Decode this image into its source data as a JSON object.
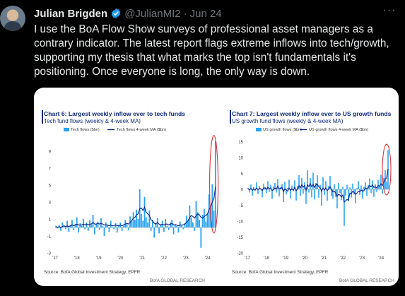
{
  "tweet": {
    "author_name": "Julian Brigden",
    "handle": "@JulianMI2",
    "separator": "·",
    "date": "Jun 24",
    "text": "I use the BoA Flow Show surveys of professional asset managers as a contrary indicator. The latest report flags extreme inflows into tech/growth, supporting my thesis that what marks the top isn't fundamentals it's positioning. Once everyone is long, the only way is down."
  },
  "colors": {
    "weekly": "#29a3f0",
    "ma": "#0c1e8a",
    "highlight": "#e0303a",
    "verified": "#1d9bf0"
  },
  "chart_data": [
    {
      "type": "bar",
      "title": "Chart 6: Largest weekly inflow ever to tech funds",
      "subtitle": "Tech fund flows (weekly & 4-week MA)",
      "series": [
        {
          "name": "Tech flows ($bn)",
          "style": "bar",
          "values": [
            0.2,
            -0.1,
            0.3,
            -0.4,
            0.6,
            0.1,
            -0.2,
            0.8,
            -0.5,
            0.3,
            0.9,
            -0.3,
            0.4,
            1.2,
            -0.6,
            0.5,
            0.2,
            1.0,
            -0.2,
            0.6,
            -0.4,
            0.9,
            0.3,
            1.5,
            -0.8,
            0.4,
            0.7,
            -0.3,
            1.1,
            0.2,
            -1.0,
            0.6,
            0.3,
            -0.5,
            0.8,
            0.1,
            -0.2,
            0.5,
            -0.6,
            0.3,
            0.6,
            -0.4,
            0.2,
            0.9,
            0.4,
            -0.3,
            1.3,
            0.7,
            1.8,
            0.9,
            2.1,
            1.0,
            4.5,
            1.6,
            0.8,
            3.6,
            1.2,
            0.6,
            2.0,
            -0.4,
            0.9,
            -1.2,
            0.5,
            1.1,
            -0.7,
            0.3,
            0.8,
            -0.5,
            1.0,
            0.2,
            -0.3,
            0.6,
            0.9,
            -0.8,
            0.4,
            0.2,
            -0.6,
            0.7,
            0.3,
            -0.2,
            0.5,
            1.4,
            0.8,
            2.6,
            1.2,
            0.6,
            -0.4,
            3.1,
            1.8,
            0.9,
            -2.4,
            1.5,
            2.2,
            0.7,
            1.6,
            3.9,
            2.4,
            5.1,
            2.0,
            10.2
          ]
        },
        {
          "name": "Tech flows 4-week MA ($bn)",
          "style": "line",
          "values": [
            0.1,
            0.0,
            0.1,
            0.0,
            0.1,
            0.2,
            0.1,
            0.2,
            0.1,
            0.2,
            0.3,
            0.2,
            0.3,
            0.4,
            0.3,
            0.3,
            0.3,
            0.4,
            0.3,
            0.4,
            0.3,
            0.4,
            0.4,
            0.6,
            0.4,
            0.4,
            0.5,
            0.4,
            0.5,
            0.4,
            0.3,
            0.3,
            0.3,
            0.2,
            0.3,
            0.2,
            0.2,
            0.3,
            0.2,
            0.2,
            0.3,
            0.2,
            0.3,
            0.4,
            0.5,
            0.4,
            0.6,
            0.8,
            1.1,
            1.2,
            1.5,
            1.6,
            2.2,
            2.3,
            2.0,
            2.4,
            1.8,
            1.6,
            1.4,
            0.9,
            0.8,
            0.5,
            0.4,
            0.6,
            0.4,
            0.3,
            0.4,
            0.3,
            0.4,
            0.4,
            0.3,
            0.4,
            0.5,
            0.3,
            0.3,
            0.3,
            0.2,
            0.3,
            0.3,
            0.3,
            0.4,
            0.6,
            0.8,
            1.2,
            1.4,
            1.3,
            1.1,
            1.4,
            1.6,
            1.5,
            1.2,
            1.1,
            1.3,
            1.4,
            1.6,
            2.1,
            2.4,
            3.0,
            3.4,
            4.8
          ]
        }
      ],
      "x_tick_labels": [
        "'17",
        "'18",
        "'19",
        "'20",
        "'21",
        "'22",
        "'23",
        "'24"
      ],
      "y_tick_labels": [
        "9",
        "7",
        "5",
        "3",
        "1",
        "-1",
        "-3"
      ],
      "ylim": [
        -3,
        10.5
      ],
      "source": "Source: BofA Global Investment Strategy, EPFR",
      "brand": "BofA GLOBAL RESEARCH"
    },
    {
      "type": "bar",
      "title": "Chart 7: Largest weekly inflow ever to US growth funds",
      "subtitle": "US growth fund flows (weekly & 4-week MA)",
      "series": [
        {
          "name": "US growth flows ($bn)",
          "style": "bar",
          "values": [
            0.5,
            -1.0,
            1.5,
            -2.0,
            0.8,
            -0.5,
            2.2,
            -1.5,
            1.0,
            0.3,
            -2.5,
            1.8,
            0.6,
            -1.2,
            2.6,
            -0.8,
            1.4,
            -3.0,
            0.9,
            2.0,
            -1.0,
            3.2,
            -2.2,
            0.7,
            1.6,
            -4.0,
            2.4,
            -1.6,
            0.4,
            3.0,
            -2.8,
            1.2,
            -0.6,
            2.8,
            -3.5,
            1.0,
            4.5,
            -2.0,
            3.6,
            -1.4,
            2.2,
            -4.6,
            6.0,
            -1.0,
            3.5,
            -2.5,
            5.2,
            -3.2,
            2.0,
            4.4,
            -2.6,
            1.4,
            -5.2,
            3.8,
            -1.8,
            2.6,
            -3.6,
            1.0,
            4.2,
            -2.2,
            -3.0,
            1.6,
            -2.4,
            -6.0,
            2.0,
            -1.2,
            -3.4,
            0.8,
            -11.5,
            -2.0,
            1.4,
            -3.8,
            0.6,
            -2.6,
            1.8,
            -1.6,
            -4.4,
            0.4,
            2.6,
            -1.8,
            1.2,
            -3.0,
            0.8,
            2.2,
            -2.0,
            1.4,
            3.4,
            -1.2,
            2.8,
            -2.4,
            1.6,
            -0.8,
            3.0,
            1.0,
            4.6,
            -1.4,
            3.6,
            6.0,
            2.4,
            12.4
          ]
        },
        {
          "name": "US growth flows 4-week MA ($bn)",
          "style": "line",
          "values": [
            0.2,
            -0.2,
            0.3,
            -0.3,
            0.1,
            -0.2,
            0.4,
            -0.1,
            0.3,
            0.2,
            -0.4,
            0.4,
            0.5,
            0.0,
            0.6,
            0.3,
            0.5,
            -0.4,
            -0.1,
            0.4,
            0.2,
            1.0,
            0.2,
            0.3,
            0.6,
            -0.8,
            0.1,
            -0.2,
            -0.6,
            0.4,
            -0.3,
            0.2,
            -0.3,
            0.7,
            -0.5,
            0.1,
            1.2,
            0.5,
            1.5,
            0.7,
            1.2,
            -0.3,
            1.4,
            0.9,
            1.8,
            0.8,
            1.6,
            0.6,
            1.4,
            1.6,
            0.8,
            0.5,
            -0.6,
            0.4,
            -0.2,
            0.5,
            -0.4,
            0.1,
            0.8,
            0.0,
            -0.8,
            -0.6,
            -1.2,
            -2.2,
            -1.6,
            -1.8,
            -2.4,
            -1.8,
            -4.0,
            -3.6,
            -3.2,
            -3.4,
            -1.2,
            -1.4,
            -0.6,
            -1.0,
            -1.6,
            -1.2,
            -0.6,
            -0.8,
            -0.2,
            -0.6,
            -0.4,
            0.4,
            0.2,
            0.6,
            1.2,
            0.8,
            1.4,
            0.6,
            0.8,
            0.4,
            1.2,
            1.0,
            1.8,
            1.2,
            2.2,
            3.2,
            3.6,
            6.4
          ]
        }
      ],
      "x_tick_labels": [
        "'17",
        "'18",
        "'19",
        "'20",
        "'21",
        "'22",
        "'23",
        "'24"
      ],
      "y_tick_labels": [
        "15",
        "10",
        "5",
        "0",
        "-5",
        "-10",
        "-15",
        "-20"
      ],
      "ylim": [
        -20,
        16
      ],
      "source": "Source: BofA Global Investment Strategy, EPFR",
      "brand": "BofA GLOBAL RESEARCH"
    }
  ]
}
